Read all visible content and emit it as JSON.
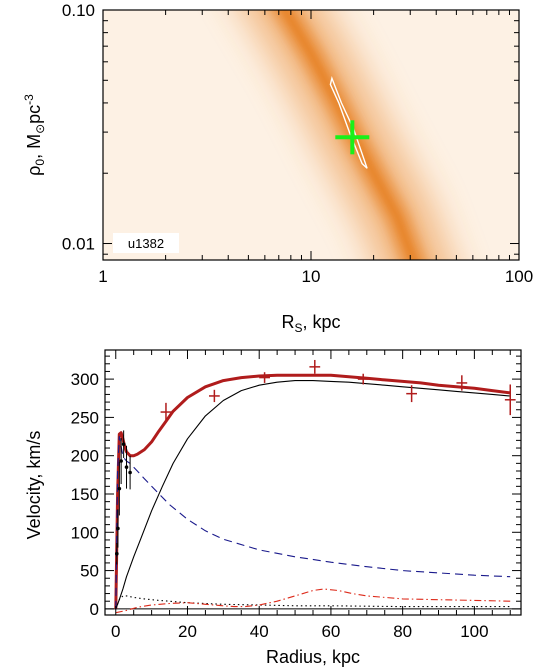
{
  "chart_data": [
    {
      "type": "heatmap",
      "title": "",
      "xlabel": "R",
      "xlabel_sub": "S",
      "xlabel_unit": ", kpc",
      "ylabel_main": "ρ",
      "ylabel_sub": "0",
      "ylabel_unit": ", M",
      "ylabel_sun": "⊙",
      "ylabel_unit2": "pc",
      "ylabel_sup": "-3",
      "xscale": "log",
      "yscale": "log",
      "xlim": [
        1,
        100
      ],
      "ylim": [
        0.0085,
        0.1
      ],
      "xticks": [
        {
          "value": 1,
          "label": "1"
        },
        {
          "value": 10,
          "label": "10"
        },
        {
          "value": 100,
          "label": "100"
        }
      ],
      "yticks": [
        {
          "value": 0.01,
          "label": "0.01"
        },
        {
          "value": 0.1,
          "label": "0.10"
        }
      ],
      "galaxy_label": "u1382",
      "galaxy_label_position": "bottom-left",
      "ridge": [
        {
          "x": 7.5,
          "y": 0.1
        },
        {
          "x": 10.0,
          "y": 0.065
        },
        {
          "x": 13.0,
          "y": 0.042
        },
        {
          "x": 16.0,
          "y": 0.029
        },
        {
          "x": 20.0,
          "y": 0.02
        },
        {
          "x": 26.0,
          "y": 0.013
        },
        {
          "x": 31.0,
          "y": 0.0085
        }
      ],
      "contour": [
        {
          "x": 12.6,
          "y": 0.051
        },
        {
          "x": 14.0,
          "y": 0.04
        },
        {
          "x": 16.0,
          "y": 0.031
        },
        {
          "x": 18.6,
          "y": 0.021
        },
        {
          "x": 17.6,
          "y": 0.022
        },
        {
          "x": 15.3,
          "y": 0.03
        },
        {
          "x": 13.6,
          "y": 0.04
        },
        {
          "x": 12.4,
          "y": 0.048
        }
      ],
      "best_fit": {
        "x": 15.8,
        "y": 0.0285
      },
      "colors": {
        "ridge": "#e8872e",
        "background": "#fdf1e4",
        "marker": "#19f019",
        "contour": "#ffffff"
      }
    },
    {
      "type": "line",
      "title": "",
      "xlabel": "Radius, kpc",
      "ylabel": "Velocity, km/s",
      "xlim": [
        -3,
        113
      ],
      "ylim": [
        -8,
        338
      ],
      "xticks": [
        0,
        20,
        40,
        60,
        80,
        100
      ],
      "yticks": [
        0,
        50,
        100,
        150,
        200,
        250,
        300
      ],
      "series": [
        {
          "style": "total-fit",
          "color": "#b01c1c",
          "x": [
            0,
            0.5,
            1,
            1.5,
            2,
            2.5,
            3,
            4,
            5,
            6,
            8,
            10,
            12,
            14,
            16,
            20,
            25,
            30,
            35,
            40,
            45,
            50,
            55,
            60,
            65,
            70,
            75,
            80,
            85,
            90,
            95,
            100,
            105,
            110
          ],
          "y": [
            0,
            150,
            228,
            230,
            222,
            212,
            205,
            200,
            200,
            202,
            208,
            218,
            232,
            245,
            258,
            276,
            290,
            298,
            302,
            304,
            305,
            305,
            305,
            305,
            303,
            301,
            299,
            297,
            295,
            292,
            290,
            288,
            285,
            282
          ]
        },
        {
          "style": "dark-halo",
          "color": "#000000",
          "x": [
            0,
            1,
            2,
            3,
            5,
            7,
            10,
            13,
            16,
            20,
            25,
            30,
            35,
            40,
            45,
            50,
            55,
            60,
            65,
            70,
            75,
            80,
            85,
            90,
            95,
            100,
            105,
            110
          ],
          "y": [
            0,
            12,
            26,
            42,
            68,
            92,
            128,
            160,
            190,
            222,
            252,
            272,
            285,
            292,
            296,
            298,
            298,
            297,
            296,
            294,
            292,
            290,
            288,
            286,
            284,
            282,
            280,
            278
          ]
        },
        {
          "style": "bulge",
          "color": "#000000",
          "dash": "1.5,3",
          "x": [
            0,
            1,
            2,
            3,
            5,
            8,
            12,
            20,
            30,
            40,
            50,
            60,
            80,
            110
          ],
          "y": [
            0,
            12,
            17,
            17,
            15,
            13,
            11,
            8,
            6,
            5,
            4,
            4,
            3,
            3
          ]
        },
        {
          "style": "stellar-disk",
          "color": "#1a1a8c",
          "dash": "8,5",
          "x": [
            0,
            0.5,
            1,
            1.5,
            2,
            2.5,
            3,
            4,
            6,
            8,
            10,
            15,
            20,
            25,
            30,
            40,
            50,
            60,
            70,
            80,
            90,
            100,
            110
          ],
          "y": [
            0,
            180,
            225,
            212,
            200,
            196,
            193,
            190,
            180,
            170,
            160,
            136,
            117,
            102,
            91,
            77,
            68,
            61,
            55,
            50,
            47,
            44,
            42
          ]
        },
        {
          "style": "gas",
          "color": "#dd2a1a",
          "dash": "7,3,1.5,3",
          "x": [
            0,
            3,
            6,
            10,
            15,
            20,
            25,
            30,
            33,
            36,
            40,
            45,
            50,
            55,
            58,
            62,
            66,
            70,
            75,
            80,
            90,
            100,
            110
          ],
          "y": [
            -5,
            -2,
            2,
            5,
            7,
            8,
            6,
            4,
            3,
            3,
            5,
            10,
            17,
            24,
            26,
            24,
            20,
            17,
            15,
            13,
            12,
            11,
            10
          ]
        }
      ],
      "observations": {
        "color": "#b01c1c",
        "points": [
          {
            "x": 14.0,
            "y": 257,
            "err": 12,
            "xerr": 1.5
          },
          {
            "x": 27.5,
            "y": 278,
            "err": 8,
            "xerr": 1.5
          },
          {
            "x": 41.5,
            "y": 302,
            "err": 7,
            "xerr": 1.5
          },
          {
            "x": 55.5,
            "y": 316,
            "err": 9,
            "xerr": 1.5
          },
          {
            "x": 69.0,
            "y": 300,
            "err": 7,
            "xerr": 1.5
          },
          {
            "x": 82.5,
            "y": 281,
            "err": 11,
            "xerr": 1.5
          },
          {
            "x": 96.5,
            "y": 295,
            "err": 10,
            "xerr": 1.5
          },
          {
            "x": 110.0,
            "y": 273,
            "err": 20,
            "xerr": 1.5
          }
        ]
      },
      "inner_points": {
        "color": "#000000",
        "points": [
          {
            "x": 0.3,
            "y": 72,
            "err": 14
          },
          {
            "x": 0.6,
            "y": 105,
            "err": 25
          },
          {
            "x": 1.0,
            "y": 157,
            "err": 35
          },
          {
            "x": 1.5,
            "y": 193,
            "err": 30
          },
          {
            "x": 2.2,
            "y": 215,
            "err": 18
          },
          {
            "x": 3.0,
            "y": 185,
            "err": 28
          },
          {
            "x": 4.0,
            "y": 178,
            "err": 22
          }
        ]
      },
      "zero_line": {
        "color": "#000000"
      }
    }
  ]
}
